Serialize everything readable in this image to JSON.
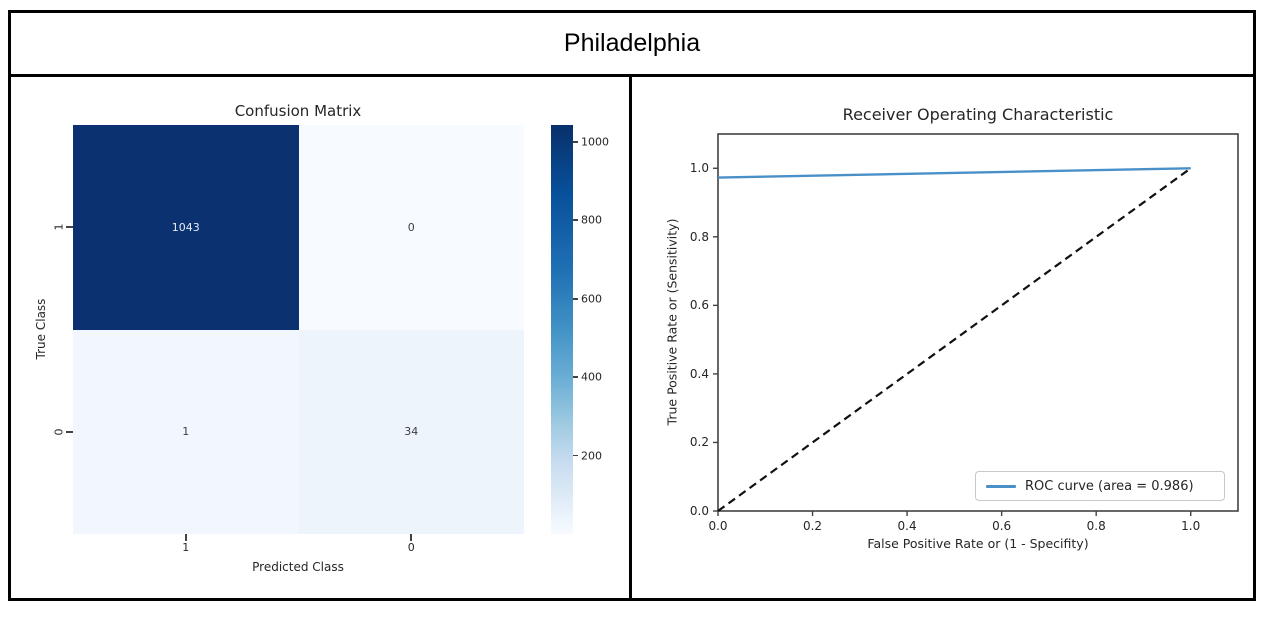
{
  "header": {
    "title": "Philadelphia"
  },
  "chart_data": [
    {
      "type": "heatmap",
      "title": "Confusion Matrix",
      "xlabel": "Predicted Class",
      "ylabel": "True Class",
      "x_tick_labels": [
        "1",
        "0"
      ],
      "y_tick_labels": [
        "1",
        "0"
      ],
      "values": [
        [
          1043,
          0
        ],
        [
          1,
          34
        ]
      ],
      "value_labels": [
        [
          "1043",
          "0"
        ],
        [
          "1",
          "34"
        ]
      ],
      "vmin": 0,
      "vmax": 1043,
      "colormap": "Blues",
      "cell_colors": [
        [
          "#0b3170",
          "#f7fbff"
        ],
        [
          "#f2f7fd",
          "#edf4fb"
        ]
      ],
      "cell_text_colors": [
        [
          "#e4ebf5",
          "#3a3f45"
        ],
        [
          "#3a3f45",
          "#3a3f45"
        ]
      ],
      "colorbar_tick_labels": [
        "1000",
        "800",
        "600",
        "400",
        "200"
      ],
      "legend_position": "right-colorbar",
      "grid": false
    },
    {
      "type": "line",
      "title": "Receiver Operating Characteristic",
      "xlabel": "False Positive Rate or (1 - Specifity)",
      "ylabel": "True Positive Rate or (Sensitivity)",
      "xlim": [
        0,
        1.1
      ],
      "ylim": [
        0,
        1.1
      ],
      "x_tick_labels": [
        "0.0",
        "0.2",
        "0.4",
        "0.6",
        "0.8",
        "1.0"
      ],
      "y_tick_labels": [
        "0.0",
        "0.2",
        "0.4",
        "0.6",
        "0.8",
        "1.0"
      ],
      "series": [
        {
          "name": "ROC curve (area = 0.986)",
          "x": [
            0,
            1.0
          ],
          "y": [
            0.973,
            1.0
          ],
          "color": "#4a90c8",
          "dash": "solid",
          "in_legend": true
        },
        {
          "name": "chance-diagonal",
          "x": [
            0,
            1.0
          ],
          "y": [
            0,
            1.0
          ],
          "color": "#111111",
          "dash": "dashed",
          "in_legend": false
        }
      ],
      "legend_position": "lower right",
      "grid": false,
      "accent_colors": {
        "roc_line": "#4a90c8",
        "spine": "#424242"
      }
    }
  ]
}
